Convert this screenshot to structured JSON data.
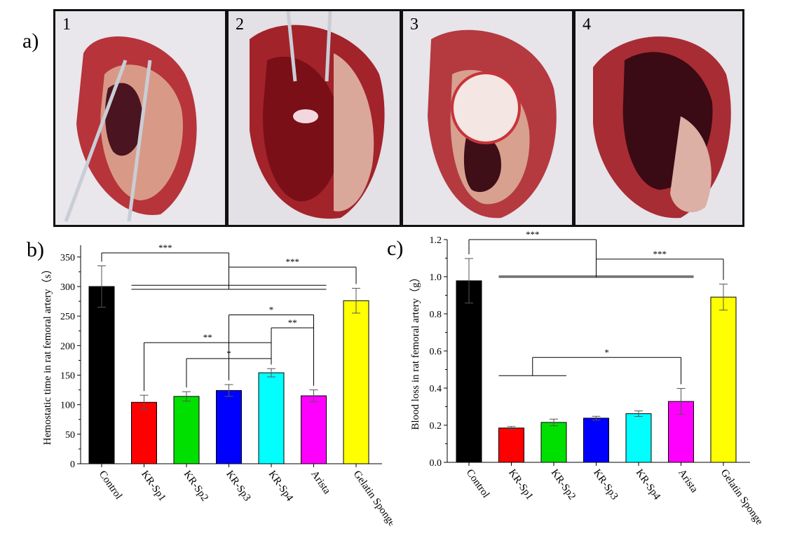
{
  "panels": {
    "a_label": "a)",
    "b_label": "b)",
    "c_label": "c)"
  },
  "photos": [
    {
      "number": "1",
      "tone": "#a8323a"
    },
    {
      "number": "2",
      "tone": "#8e1a1f"
    },
    {
      "number": "3",
      "tone": "#b3363c"
    },
    {
      "number": "4",
      "tone": "#9a2b30"
    }
  ],
  "chart_data": [
    {
      "type": "bar",
      "ylabel": "Hemostatic time in rat femoral artery（s）",
      "categories": [
        "Control",
        "KR-Sp1",
        "KR-Sp2",
        "KR-Sp3",
        "KR-Sp4",
        "Arista",
        "Gelatin Sponge"
      ],
      "values": [
        300,
        104,
        114,
        124,
        154,
        115,
        276
      ],
      "errors": [
        35,
        12,
        8,
        10,
        7,
        10,
        21
      ],
      "colors": [
        "#000000",
        "#ff0000",
        "#00e000",
        "#0000ff",
        "#00ffff",
        "#ff00ff",
        "#ffff00"
      ],
      "ylim": [
        0,
        370
      ],
      "yticks": [
        0,
        50,
        100,
        150,
        200,
        250,
        300,
        350
      ],
      "significance": [
        {
          "label": "***",
          "from": [
            0
          ],
          "to": [
            1,
            2,
            3,
            4,
            5
          ],
          "y": 357
        },
        {
          "label": "***",
          "from": [
            1,
            2,
            3,
            4,
            5
          ],
          "to": [
            6
          ],
          "y": 333
        },
        {
          "label": "*",
          "from": [
            3
          ],
          "to": [
            5
          ],
          "y": 252
        },
        {
          "label": "**",
          "from": [
            4
          ],
          "to": [
            5
          ],
          "y": 230
        },
        {
          "label": "**",
          "from": [
            1
          ],
          "to": [
            4
          ],
          "y": 205
        },
        {
          "label": "*",
          "from": [
            2
          ],
          "to": [
            4
          ],
          "y": 178
        }
      ]
    },
    {
      "type": "bar",
      "ylabel": "Blood loss in rat femoral artery（g）",
      "categories": [
        "Control",
        "KR-Sp1",
        "KR-Sp2",
        "KR-Sp3",
        "KR-Sp4",
        "Arista",
        "Gelatin Sponge"
      ],
      "values": [
        0.978,
        0.185,
        0.215,
        0.238,
        0.262,
        0.328,
        0.89
      ],
      "errors": [
        0.12,
        0.008,
        0.018,
        0.01,
        0.015,
        0.07,
        0.07
      ],
      "colors": [
        "#000000",
        "#ff0000",
        "#00e000",
        "#0000ff",
        "#00ffff",
        "#ff00ff",
        "#ffff00"
      ],
      "ylim": [
        0,
        1.2
      ],
      "yticks": [
        0.0,
        0.2,
        0.4,
        0.6,
        0.8,
        1.0,
        1.2
      ],
      "significance": [
        {
          "label": "***",
          "from": [
            0
          ],
          "to": [
            1,
            2,
            3,
            4,
            5
          ],
          "y": 1.2
        },
        {
          "label": "***",
          "from": [
            1,
            2,
            3,
            4,
            5
          ],
          "to": [
            6
          ],
          "y": 1.095
        },
        {
          "label": "*",
          "from": [
            1,
            2
          ],
          "to": [
            5
          ],
          "y": 0.565
        }
      ]
    }
  ]
}
